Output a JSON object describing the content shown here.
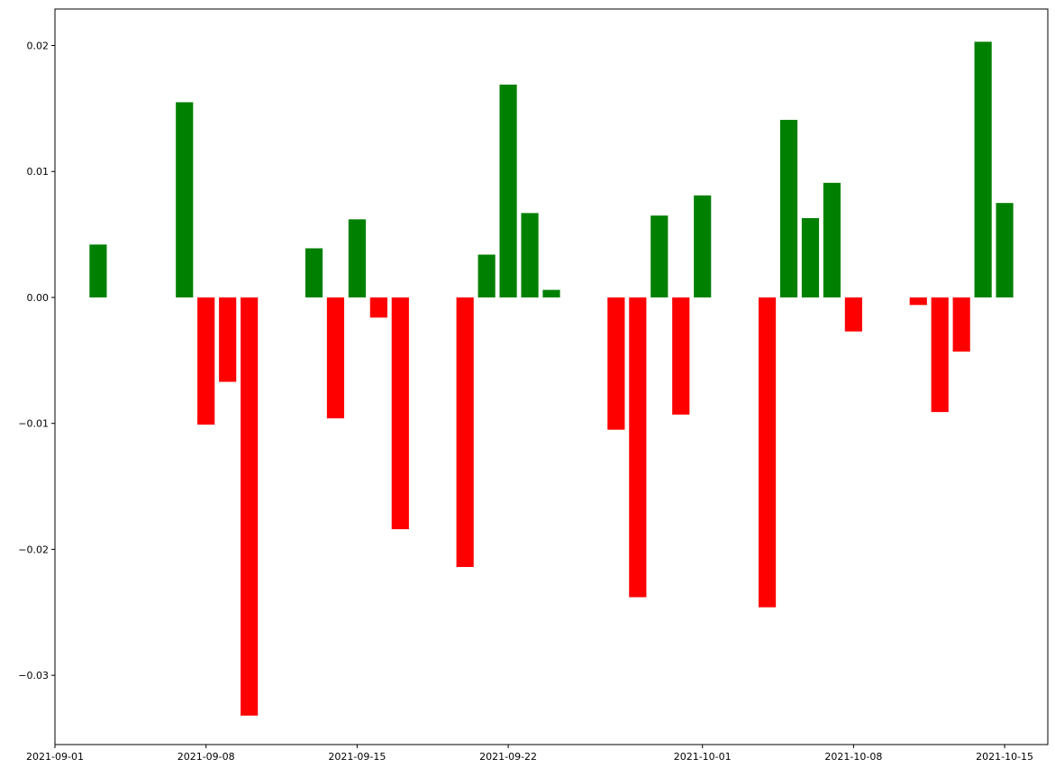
{
  "chart_data": {
    "type": "bar",
    "title": "",
    "xlabel": "",
    "ylabel": "",
    "x_axis_type": "date",
    "xlim": [
      "2021-09-01",
      "2021-10-17"
    ],
    "ylim": [
      -0.0355,
      0.0229
    ],
    "grid": false,
    "legend": "none",
    "positive_color": "#008000",
    "negative_color": "#ff0000",
    "x_ticks": [
      "2021-09-01",
      "2021-09-08",
      "2021-09-15",
      "2021-09-22",
      "2021-10-01",
      "2021-10-08",
      "2021-10-15"
    ],
    "y_ticks": [
      -0.03,
      -0.02,
      -0.01,
      0.0,
      0.01,
      0.02
    ],
    "y_tick_labels": [
      "−0.03",
      "−0.02",
      "−0.01",
      "0.00",
      "0.01",
      "0.02"
    ],
    "x": [
      "2021-09-03",
      "2021-09-07",
      "2021-09-08",
      "2021-09-09",
      "2021-09-10",
      "2021-09-13",
      "2021-09-14",
      "2021-09-15",
      "2021-09-16",
      "2021-09-17",
      "2021-09-20",
      "2021-09-21",
      "2021-09-22",
      "2021-09-23",
      "2021-09-24",
      "2021-09-27",
      "2021-09-28",
      "2021-09-29",
      "2021-09-30",
      "2021-10-01",
      "2021-10-04",
      "2021-10-05",
      "2021-10-06",
      "2021-10-07",
      "2021-10-08",
      "2021-10-11",
      "2021-10-12",
      "2021-10-13",
      "2021-10-14",
      "2021-10-15"
    ],
    "values": [
      0.0042,
      0.0155,
      -0.0101,
      -0.0067,
      -0.0332,
      0.0039,
      -0.0096,
      0.0062,
      -0.0016,
      -0.0184,
      -0.0214,
      0.0034,
      0.0169,
      0.0067,
      0.0006,
      -0.0105,
      -0.0238,
      0.0065,
      -0.0093,
      0.0081,
      -0.0246,
      0.0141,
      0.0063,
      0.0091,
      -0.0027,
      -0.0006,
      -0.0091,
      -0.0043,
      0.0203,
      0.0075
    ]
  }
}
